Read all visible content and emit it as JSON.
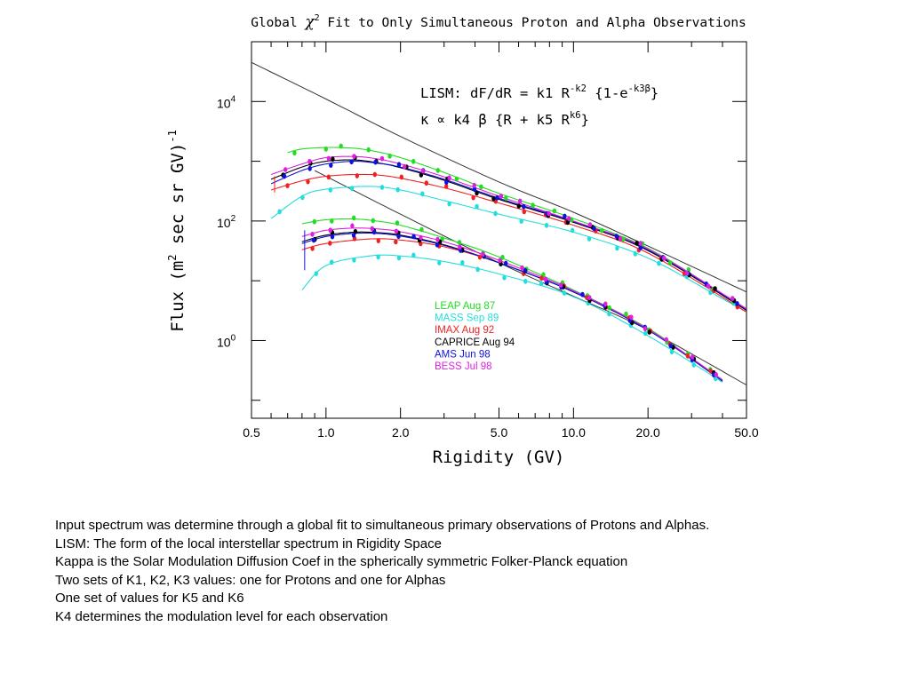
{
  "chart_data": {
    "type": "scatter",
    "title_parts": [
      "Global ",
      "χ",
      "2",
      " Fit to Only Simultaneous Proton and Alpha Observations"
    ],
    "xlabel": "Rigidity (GV)",
    "ylabel_parts": [
      "Flux (m",
      "2",
      " sec sr GV)",
      "-1"
    ],
    "x_scale": "log",
    "y_scale": "log",
    "xlim": [
      0.5,
      50
    ],
    "ylim": [
      0.05,
      100000
    ],
    "x_ticks": [
      {
        "v": 0.5,
        "label": "0.5"
      },
      {
        "v": 1.0,
        "label": "1.0"
      },
      {
        "v": 2.0,
        "label": "2.0"
      },
      {
        "v": 5.0,
        "label": "5.0"
      },
      {
        "v": 10.0,
        "label": "10.0"
      },
      {
        "v": 20.0,
        "label": "20.0"
      },
      {
        "v": 50.0,
        "label": "50.0"
      }
    ],
    "y_ticks": [
      {
        "v": 1,
        "base": "10",
        "exp": "0"
      },
      {
        "v": 100,
        "base": "10",
        "exp": "2"
      },
      {
        "v": 10000,
        "base": "10",
        "exp": "4"
      }
    ],
    "formula_line1": {
      "lead": "LISM: dF/dR = k1 R",
      "sup1": "-k2",
      "mid": " {1-e",
      "sup2": "-k3β",
      "tail": "}"
    },
    "formula_line2": {
      "lead": "κ ∝ k4 β {R + k5 R",
      "sup": "k6",
      "tail": "}"
    },
    "lism": {
      "proton": {
        "x": [
          0.5,
          1.0,
          2.0,
          5.0,
          10.0,
          20.0,
          50.0
        ],
        "y": [
          45000,
          11000,
          2600,
          450,
          140,
          38,
          6.5
        ]
      },
      "alpha": {
        "x": [
          0.9,
          2.0,
          5.0,
          10.0,
          20.0,
          50.0
        ],
        "y": [
          700,
          130,
          20,
          5.5,
          1.5,
          0.18
        ]
      }
    },
    "series": [
      {
        "name": "LEAP Aug 87",
        "color": "#22dd22",
        "proton": {
          "x": [
            0.7,
            0.8,
            1.0,
            1.3,
            1.6,
            2.0,
            3.0,
            5.0,
            10.0,
            20.0,
            40.0,
            50.0
          ],
          "y": [
            1400,
            1600,
            1700,
            1650,
            1450,
            1150,
            650,
            290,
            110,
            35,
            6,
            3.4
          ]
        },
        "alpha": {
          "x": [
            0.8,
            1.0,
            1.3,
            1.6,
            2.0,
            3.0,
            5.0,
            10.0,
            20.0,
            30.0,
            40.0
          ],
          "y": [
            90,
            105,
            108,
            100,
            85,
            52,
            25,
            7,
            1.6,
            0.5,
            0.22
          ]
        }
      },
      {
        "name": "MASS Sep 89",
        "color": "#22dddd",
        "proton": {
          "x": [
            0.6,
            0.8,
            1.0,
            1.5,
            2.0,
            3.0,
            5.0,
            10.0,
            20.0,
            40.0,
            50.0
          ],
          "y": [
            110,
            260,
            340,
            380,
            330,
            220,
            130,
            65,
            24,
            5,
            3
          ]
        },
        "alpha": {
          "x": [
            0.8,
            1.0,
            1.5,
            2.0,
            3.0,
            5.0,
            10.0,
            20.0,
            40.0
          ],
          "y": [
            7,
            18,
            26,
            26,
            21,
            13,
            5.4,
            1.2,
            0.2
          ]
        }
      },
      {
        "name": "IMAX Aug 92",
        "color": "#ee2222",
        "proton": {
          "x": [
            0.6,
            0.8,
            1.0,
            1.3,
            1.6,
            2.0,
            3.0,
            5.0,
            10.0,
            20.0,
            50.0
          ],
          "y": [
            330,
            470,
            560,
            600,
            590,
            520,
            360,
            200,
            85,
            29,
            3
          ]
        },
        "alpha": {
          "x": [
            0.8,
            1.0,
            1.5,
            2.0,
            3.0,
            5.0,
            10.0,
            20.0,
            40.0
          ],
          "y": [
            33,
            42,
            50,
            48,
            37,
            20,
            6.5,
            1.5,
            0.21
          ]
        }
      },
      {
        "name": "CAPRICE Aug 94",
        "color": "#000000",
        "proton": {
          "x": [
            0.6,
            0.8,
            1.0,
            1.3,
            1.6,
            2.0,
            3.0,
            5.0,
            10.0,
            20.0,
            50.0
          ],
          "y": [
            500,
            800,
            1000,
            1050,
            950,
            780,
            480,
            230,
            95,
            32,
            3.2
          ]
        },
        "alpha": {
          "x": [
            0.8,
            1.0,
            1.3,
            1.6,
            2.0,
            3.0,
            5.0,
            10.0,
            20.0,
            40.0
          ],
          "y": [
            45,
            58,
            65,
            64,
            58,
            40,
            20,
            6.5,
            1.5,
            0.21
          ]
        }
      },
      {
        "name": "AMS Jun 98",
        "color": "#1111dd",
        "proton": {
          "x": [
            0.6,
            0.8,
            1.0,
            1.3,
            1.6,
            2.0,
            3.0,
            5.0,
            10.0,
            20.0,
            50.0
          ],
          "y": [
            420,
            700,
            900,
            1000,
            930,
            800,
            500,
            240,
            98,
            33,
            3.3
          ]
        },
        "alpha": {
          "x": [
            0.8,
            1.0,
            1.3,
            1.6,
            2.0,
            3.0,
            5.0,
            10.0,
            20.0,
            40.0
          ],
          "y": [
            42,
            55,
            62,
            62,
            56,
            39,
            20,
            6.5,
            1.5,
            0.21
          ]
        }
      },
      {
        "name": "BESS Jul 98",
        "color": "#dd22dd",
        "proton": {
          "x": [
            0.6,
            0.8,
            1.0,
            1.3,
            1.6,
            2.0,
            3.0,
            5.0,
            10.0,
            20.0,
            50.0
          ],
          "y": [
            600,
            900,
            1150,
            1200,
            1100,
            900,
            550,
            260,
            100,
            34,
            3.4
          ]
        },
        "alpha": {
          "x": [
            0.8,
            1.0,
            1.3,
            1.6,
            2.0,
            3.0,
            5.0,
            10.0,
            20.0,
            40.0
          ],
          "y": [
            55,
            70,
            76,
            74,
            66,
            45,
            22,
            6.8,
            1.55,
            0.22
          ]
        }
      }
    ]
  },
  "notes": [
    "Input spectrum was determine through a global fit to simultaneous primary observations of Protons and Alphas.",
    "LISM: The form of the local interstellar spectrum in Rigidity Space",
    "Kappa is the Solar Modulation Diffusion Coef in the spherically symmetric Folker-Planck equation",
    "Two sets of K1, K2, K3 values: one for  Protons and one for Alphas",
    "One set of values for  K5 and K6",
    "K4 determines the modulation level for each observation"
  ]
}
